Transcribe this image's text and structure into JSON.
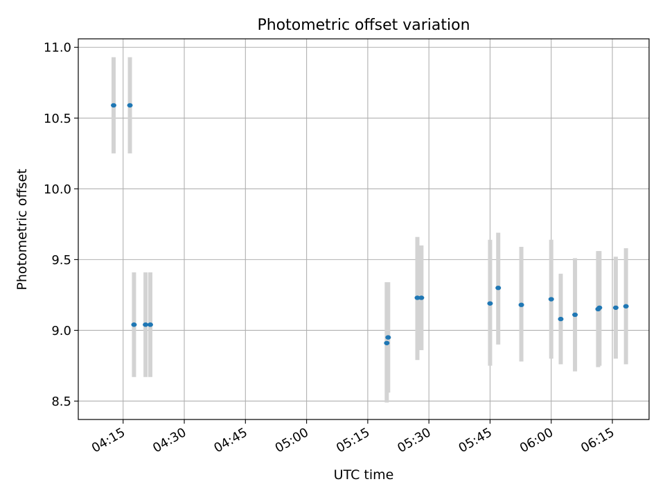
{
  "chart_data": {
    "type": "scatter",
    "title": "Photometric offset variation",
    "xlabel": "UTC time",
    "ylabel": "Photometric offset",
    "ylim": [
      8.37,
      11.06
    ],
    "xlim": [
      "04:04",
      "06:24"
    ],
    "xticks": [
      "04:15",
      "04:30",
      "04:45",
      "05:00",
      "05:15",
      "05:30",
      "05:45",
      "06:00",
      "06:15"
    ],
    "yticks": [
      "8.5",
      "9.0",
      "9.5",
      "10.0",
      "10.5",
      "11.0"
    ],
    "grid": true,
    "colors": {
      "points": "#1f77b4",
      "error_bars": "#d3d3d3",
      "grid": "#b0b0b0"
    },
    "series": [
      {
        "points": [
          {
            "x": "04:12:40",
            "y": 10.59,
            "ylow": 10.25,
            "yhigh": 10.93
          },
          {
            "x": "04:16:40",
            "y": 10.59,
            "ylow": 10.25,
            "yhigh": 10.93
          },
          {
            "x": "04:17:40",
            "y": 9.04,
            "ylow": 8.67,
            "yhigh": 9.41
          },
          {
            "x": "04:20:30",
            "y": 9.04,
            "ylow": 8.67,
            "yhigh": 9.41
          },
          {
            "x": "04:21:40",
            "y": 9.04,
            "ylow": 8.67,
            "yhigh": 9.41
          },
          {
            "x": "05:19:40",
            "y": 8.91,
            "ylow": 8.49,
            "yhigh": 9.34
          },
          {
            "x": "05:20:00",
            "y": 8.95,
            "ylow": 8.56,
            "yhigh": 9.34
          },
          {
            "x": "05:27:10",
            "y": 9.23,
            "ylow": 8.79,
            "yhigh": 9.66
          },
          {
            "x": "05:28:10",
            "y": 9.23,
            "ylow": 8.86,
            "yhigh": 9.6
          },
          {
            "x": "05:45:00",
            "y": 9.19,
            "ylow": 8.75,
            "yhigh": 9.64
          },
          {
            "x": "05:47:00",
            "y": 9.3,
            "ylow": 8.9,
            "yhigh": 9.69
          },
          {
            "x": "05:52:40",
            "y": 9.18,
            "ylow": 8.78,
            "yhigh": 9.59
          },
          {
            "x": "06:00:00",
            "y": 9.22,
            "ylow": 8.8,
            "yhigh": 9.64
          },
          {
            "x": "06:02:20",
            "y": 9.08,
            "ylow": 8.76,
            "yhigh": 9.4
          },
          {
            "x": "06:05:50",
            "y": 9.11,
            "ylow": 8.71,
            "yhigh": 9.51
          },
          {
            "x": "06:11:30",
            "y": 9.15,
            "ylow": 8.74,
            "yhigh": 9.56
          },
          {
            "x": "06:11:50",
            "y": 9.16,
            "ylow": 8.75,
            "yhigh": 9.56
          },
          {
            "x": "06:15:50",
            "y": 9.16,
            "ylow": 8.8,
            "yhigh": 9.52
          },
          {
            "x": "06:18:20",
            "y": 9.17,
            "ylow": 8.76,
            "yhigh": 9.58
          }
        ]
      }
    ]
  }
}
